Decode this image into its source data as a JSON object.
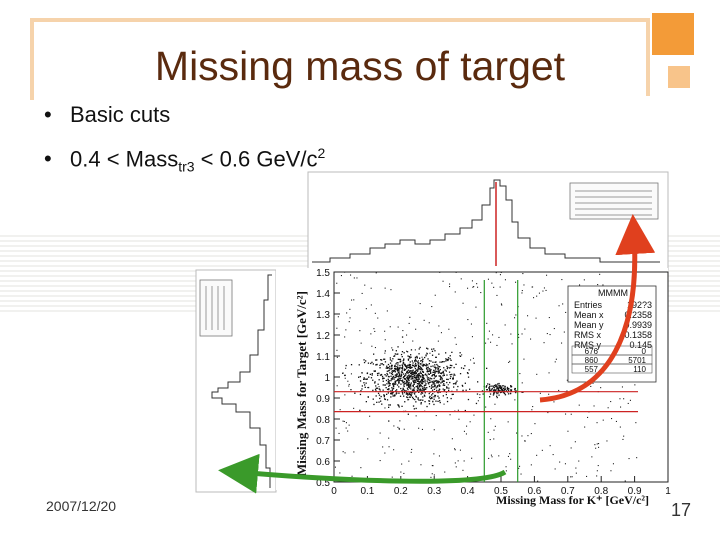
{
  "slide": {
    "title": "Missing mass of target",
    "bullets": [
      {
        "text": "Basic cuts"
      },
      {
        "prefix": "0.4 < Mass",
        "sub": "tr3",
        "middle": " < 0.6 GeV/c",
        "sup": "2"
      }
    ],
    "date": "2007/12/20",
    "page_number": "17"
  },
  "colors": {
    "title": "#5a2a0e",
    "accent_orange": "#f39b38",
    "accent_light": "#f8c48a",
    "frame": "#f6d3ab",
    "arrow_red": "#e0401e",
    "arrow_green": "#3a9a2a",
    "cut_line_red": "#cc2222",
    "cut_line_green": "#2a9a2a"
  },
  "chart_data": {
    "type": "scatter",
    "xlabel": "Missing Mass for K⁺ [GeV/c²]",
    "ylabel": "Missing Mass for Target [GeV/c²]",
    "xlim": [
      0,
      1
    ],
    "ylim": [
      0.5,
      1.5
    ],
    "x_ticks": [
      "0",
      "0.1",
      "0.2",
      "0.3",
      "0.4",
      "0.5",
      "0.6",
      "0.7",
      "0.8",
      "0.9",
      "1"
    ],
    "y_ticks": [
      "0.5",
      "0.6",
      "0.7",
      "0.8",
      "0.9",
      "1",
      "1.1",
      "1.2",
      "1.3",
      "1.4",
      "1.5"
    ],
    "x_tick_values": [
      0,
      0.1,
      0.2,
      0.3,
      0.4,
      0.5,
      0.6,
      0.7,
      0.8,
      0.9,
      1
    ],
    "y_tick_values": [
      0.5,
      0.6,
      0.7,
      0.8,
      0.9,
      1,
      1.1,
      1.2,
      1.3,
      1.4,
      1.5
    ],
    "vertical_cuts": [
      0.45,
      0.55
    ],
    "horizontal_cuts": [
      0.835,
      0.93
    ],
    "clusters": [
      {
        "x_mean": 0.2358,
        "y_mean": 0.9939,
        "n": 1000,
        "spread_x": 0.07,
        "spread_y": 0.06
      },
      {
        "x_mean": 0.5,
        "y_mean": 0.94,
        "n": 130,
        "spread_x": 0.025,
        "spread_y": 0.012
      }
    ],
    "background_points": 420,
    "stats": {
      "title": "MMMM",
      "rows": [
        {
          "label": "Entries",
          "value": "192?3"
        },
        {
          "label": "Mean x",
          "value": "0.2358"
        },
        {
          "label": "Mean y",
          "value": "0.9939"
        },
        {
          "label": "RMS x",
          "value": "0.1358"
        },
        {
          "label": "RMS y",
          "value": "0.145"
        }
      ],
      "grid": [
        [
          "676",
          "0"
        ],
        [
          "860",
          "5701"
        ],
        [
          "557",
          "110"
        ]
      ]
    },
    "projection_x": {
      "xlabel": "Missing Mass for K⁺ [GeV/c²]",
      "peak_x": 0.5,
      "cut_x": 0.5
    },
    "projection_y": {
      "peak_y": 0.94
    }
  }
}
